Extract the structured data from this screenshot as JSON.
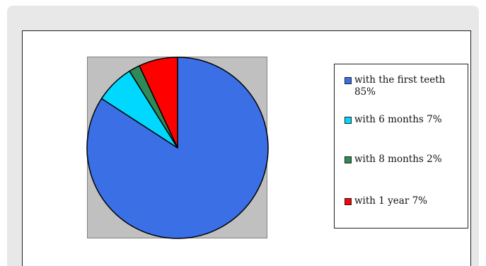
{
  "chart_data": {
    "type": "pie",
    "title": "",
    "slices": [
      {
        "label": "with the first teeth 85%",
        "value": 85,
        "color": "#3a6fe6"
      },
      {
        "label": "with 6 months 7%",
        "value": 7,
        "color": "#00d8ff"
      },
      {
        "label": "with 8 months 2%",
        "value": 2,
        "color": "#2e8b57"
      },
      {
        "label": "with 1 year 7%",
        "value": 7,
        "color": "#ff0000"
      }
    ],
    "legend_position": "right"
  }
}
